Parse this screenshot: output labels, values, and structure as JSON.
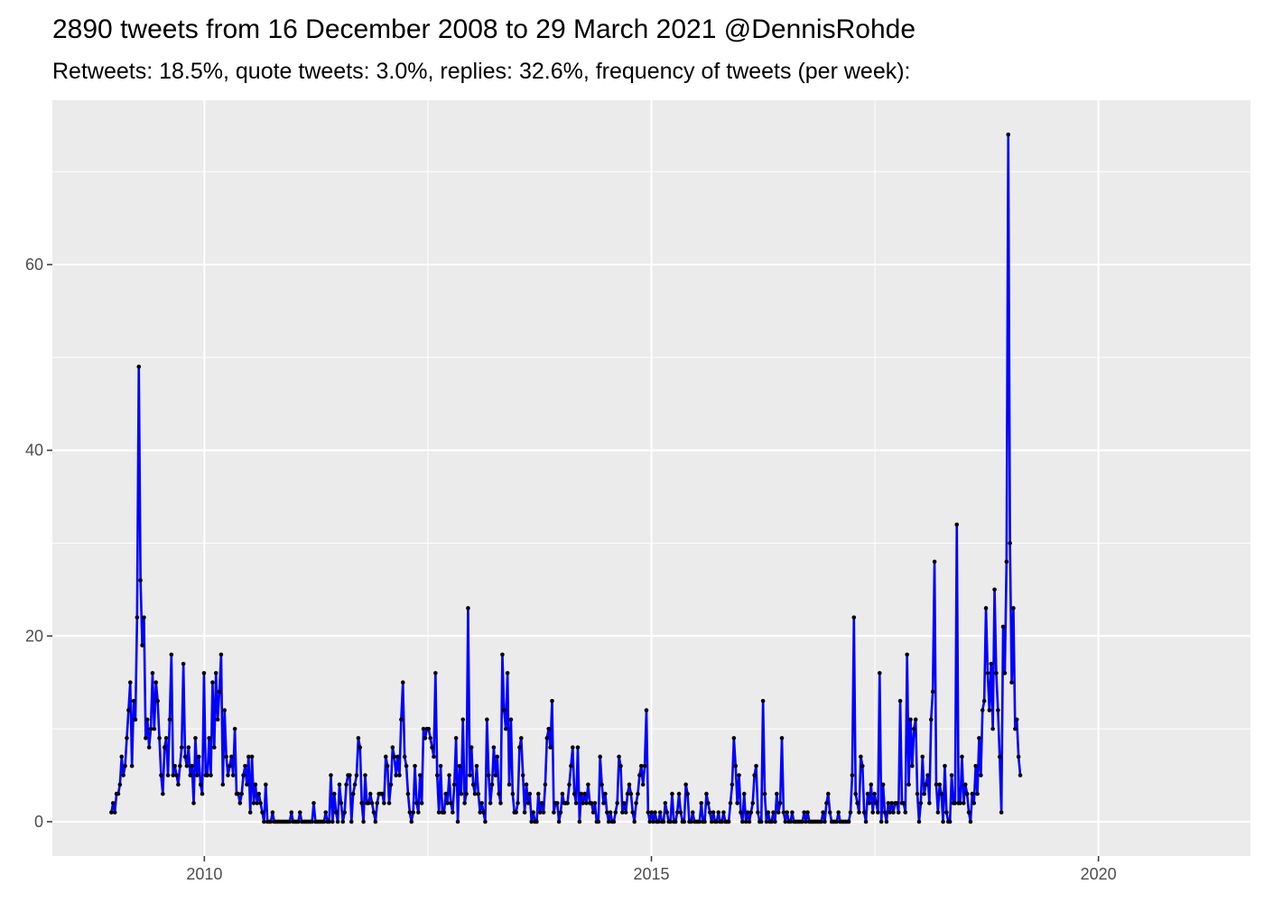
{
  "chart_data": {
    "type": "line",
    "title": "2890 tweets from 16 December 2008 to 29 March 2021 @DennisRohde",
    "subtitle": "Retweets: 18.5%, quote tweets: 3.0%, replies: 32.6%, frequency of tweets (per week):",
    "xlabel": "",
    "ylabel": "",
    "xlim": [
      2008.3,
      2021.7
    ],
    "ylim": [
      -3.7,
      77.7
    ],
    "x_ticks": [
      2010,
      2015,
      2020
    ],
    "x_tick_labels": [
      "2010",
      "2015",
      "2020"
    ],
    "y_ticks": [
      0,
      20,
      40,
      60
    ],
    "y_tick_labels": [
      "0",
      "20",
      "40",
      "60"
    ],
    "grid": true,
    "background": "#ebebeb",
    "line_color": "#0000ff",
    "point_color": "#000000",
    "series": [
      {
        "x_start": 2008.96,
        "x_step": 0.01918,
        "values": [
          1,
          2,
          1,
          3,
          3,
          4,
          7,
          5,
          6,
          9,
          12,
          15,
          6,
          13,
          11,
          22,
          49,
          26,
          19,
          22,
          9,
          11,
          8,
          10,
          16,
          10,
          15,
          13,
          9,
          5,
          3,
          8,
          9,
          5,
          11,
          18,
          5,
          6,
          5,
          4,
          6,
          8,
          17,
          7,
          6,
          8,
          5,
          6,
          2,
          9,
          5,
          7,
          4,
          3,
          16,
          5,
          5,
          9,
          5,
          15,
          8,
          16,
          11,
          14,
          18,
          4,
          12,
          7,
          5,
          6,
          7,
          5,
          10,
          3,
          3,
          2,
          3,
          5,
          6,
          4,
          7,
          1,
          7,
          2,
          4,
          2,
          3,
          2,
          1,
          0,
          4,
          0,
          0,
          0,
          1,
          0,
          0,
          0,
          0,
          0,
          0,
          0,
          0,
          0,
          0,
          1,
          0,
          0,
          0,
          0,
          1,
          0,
          0,
          0,
          0,
          0,
          0,
          0,
          2,
          0,
          0,
          0,
          0,
          0,
          0,
          1,
          0,
          0,
          5,
          0,
          3,
          1,
          0,
          4,
          2,
          0,
          1,
          4,
          5,
          5,
          0,
          3,
          4,
          5,
          9,
          8,
          2,
          0,
          5,
          2,
          2,
          3,
          2,
          1,
          0,
          2,
          3,
          3,
          3,
          2,
          7,
          6,
          2,
          4,
          8,
          7,
          5,
          7,
          5,
          11,
          15,
          7,
          6,
          3,
          1,
          0,
          1,
          6,
          2,
          1,
          5,
          2,
          10,
          9,
          10,
          10,
          9,
          8,
          7,
          16,
          5,
          1,
          6,
          1,
          1,
          3,
          2,
          5,
          2,
          1,
          4,
          9,
          0,
          6,
          3,
          11,
          2,
          3,
          23,
          5,
          8,
          4,
          3,
          6,
          3,
          1,
          2,
          1,
          0,
          11,
          5,
          2,
          4,
          8,
          5,
          7,
          3,
          2,
          18,
          12,
          10,
          16,
          4,
          11,
          3,
          1,
          1,
          2,
          8,
          9,
          5,
          1,
          4,
          2,
          3,
          0,
          1,
          0,
          0,
          3,
          1,
          2,
          1,
          4,
          9,
          10,
          8,
          13,
          1,
          2,
          2,
          0,
          1,
          3,
          2,
          2,
          2,
          4,
          6,
          8,
          3,
          2,
          8,
          0,
          3,
          2,
          3,
          2,
          4,
          2,
          2,
          1,
          2,
          0,
          0,
          7,
          4,
          2,
          3,
          1,
          0,
          1,
          0,
          0,
          1,
          2,
          7,
          6,
          1,
          2,
          1,
          3,
          4,
          3,
          1,
          0,
          2,
          3,
          5,
          6,
          4,
          6,
          12,
          1,
          0,
          1,
          0,
          1,
          0,
          0,
          1,
          0,
          0,
          2,
          1,
          0,
          0,
          3,
          0,
          0,
          1,
          3,
          1,
          0,
          0,
          4,
          3,
          0,
          0,
          1,
          0,
          0,
          0,
          0,
          2,
          0,
          0,
          3,
          2,
          1,
          0,
          1,
          0,
          0,
          1,
          0,
          0,
          1,
          0,
          0,
          0,
          2,
          4,
          9,
          6,
          2,
          5,
          1,
          0,
          3,
          0,
          1,
          0,
          1,
          2,
          5,
          6,
          1,
          0,
          0,
          13,
          3,
          0,
          1,
          0,
          0,
          1,
          0,
          3,
          1,
          2,
          9,
          1,
          0,
          1,
          0,
          0,
          1,
          0,
          0,
          0,
          0,
          0,
          0,
          1,
          0,
          1,
          0,
          0,
          0,
          0,
          0,
          0,
          0,
          0,
          1,
          0,
          2,
          3,
          1,
          0,
          0,
          0,
          0,
          1,
          0,
          0,
          0,
          0,
          0,
          0,
          1,
          5,
          22,
          3,
          2,
          1,
          7,
          6,
          1,
          0,
          3,
          2,
          4,
          1,
          3,
          2,
          1,
          16,
          0,
          4,
          1,
          0,
          2,
          1,
          2,
          1,
          2,
          2,
          1,
          13,
          2,
          2,
          1,
          18,
          4,
          11,
          6,
          10,
          11,
          3,
          0,
          2,
          7,
          3,
          4,
          5,
          2,
          11,
          14,
          28,
          4,
          1,
          4,
          3,
          0,
          6,
          1,
          0,
          0,
          5,
          2,
          2,
          32,
          2,
          2,
          7,
          2,
          4,
          3,
          1,
          0,
          3,
          2,
          6,
          3,
          9,
          5,
          12,
          13,
          23,
          16,
          12,
          17,
          10,
          25,
          16,
          12,
          7,
          1,
          21,
          16,
          28,
          74,
          30,
          15,
          23,
          10,
          11,
          7,
          5
        ]
      }
    ]
  }
}
